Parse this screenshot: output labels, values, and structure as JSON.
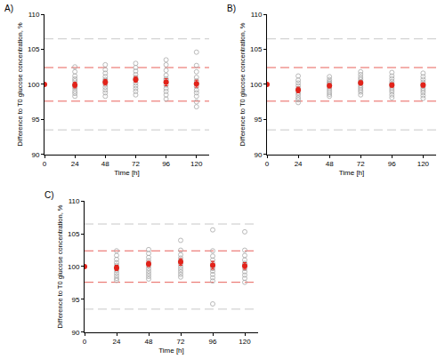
{
  "chart_data": [
    {
      "type": "scatter",
      "title": "A)",
      "x_label": "Time [h]",
      "y_label": "Difference to T0 glucose concentration, %",
      "xlim": [
        0,
        130
      ],
      "xticks": [
        0,
        24,
        48,
        72,
        96,
        120
      ],
      "ylim": [
        90,
        110
      ],
      "yticks": [
        90,
        95,
        100,
        105,
        110
      ],
      "grid": false,
      "hlines": [
        {
          "value": 106.5,
          "color": "#c8c8c8",
          "line_style": "dashed"
        },
        {
          "value": 93.5,
          "color": "#c8c8c8",
          "line_style": "dashed"
        },
        {
          "value": 102.4,
          "color": "#e8605a",
          "line_style": "dashed"
        },
        {
          "value": 97.6,
          "color": "#e8605a",
          "line_style": "dashed"
        }
      ],
      "series": [
        {
          "marker": "open_circle",
          "color": "#a8a8a8",
          "points": [
            {
              "x": 24,
              "values": [
                102.5,
                101.8,
                101.2,
                100.8,
                100.5,
                100.1,
                99.7,
                99.4,
                99.0,
                98.7,
                98.3,
                99.9
              ]
            },
            {
              "x": 48,
              "values": [
                102.8,
                102.1,
                101.6,
                101.1,
                100.7,
                100.3,
                100.0,
                99.6,
                99.2,
                98.8,
                98.3,
                100.5
              ]
            },
            {
              "x": 72,
              "values": [
                103.0,
                102.4,
                101.9,
                101.4,
                101.0,
                100.6,
                100.2,
                99.8,
                99.4,
                99.0,
                98.5,
                100.8
              ]
            },
            {
              "x": 96,
              "values": [
                103.5,
                102.8,
                102.0,
                101.3,
                100.8,
                100.3,
                99.9,
                99.4,
                99.0,
                98.5,
                97.9,
                100.6
              ]
            },
            {
              "x": 120,
              "values": [
                104.6,
                102.7,
                101.8,
                101.0,
                100.5,
                100.1,
                99.7,
                99.2,
                98.8,
                98.3,
                97.5,
                96.8
              ]
            }
          ]
        },
        {
          "marker": "circle",
          "color": "#e2231a",
          "x": [
            0,
            24,
            48,
            72,
            96,
            120
          ],
          "values": [
            100,
            99.9,
            100.3,
            100.7,
            100.3,
            100.1
          ],
          "error": [
            0,
            0.4,
            0.4,
            0.4,
            0.5,
            0.5
          ]
        }
      ]
    },
    {
      "type": "scatter",
      "title": "B)",
      "x_label": "Time [h]",
      "y_label": "Difference to T0 glucose concentration, %",
      "xlim": [
        0,
        130
      ],
      "xticks": [
        0,
        24,
        48,
        72,
        96,
        120
      ],
      "ylim": [
        90,
        110
      ],
      "yticks": [
        90,
        95,
        100,
        105,
        110
      ],
      "grid": false,
      "hlines": [
        {
          "value": 106.5,
          "color": "#c8c8c8",
          "line_style": "dashed"
        },
        {
          "value": 93.5,
          "color": "#c8c8c8",
          "line_style": "dashed"
        },
        {
          "value": 102.4,
          "color": "#e8605a",
          "line_style": "dashed"
        },
        {
          "value": 97.6,
          "color": "#e8605a",
          "line_style": "dashed"
        }
      ],
      "series": [
        {
          "marker": "open_circle",
          "color": "#a8a8a8",
          "points": [
            {
              "x": 24,
              "values": [
                101.2,
                100.6,
                100.2,
                99.8,
                99.4,
                99.1,
                98.8,
                98.5,
                98.1,
                97.8,
                97.4,
                99.3
              ]
            },
            {
              "x": 48,
              "values": [
                101.1,
                100.7,
                100.4,
                100.1,
                99.8,
                99.5,
                99.2,
                98.9,
                98.6,
                98.3,
                99.9,
                100.2
              ]
            },
            {
              "x": 72,
              "values": [
                101.8,
                101.4,
                101.0,
                100.7,
                100.4,
                100.1,
                99.8,
                99.5,
                99.2,
                98.9,
                98.5,
                100.3
              ]
            },
            {
              "x": 96,
              "values": [
                101.7,
                101.2,
                100.8,
                100.4,
                100.1,
                99.8,
                99.5,
                99.2,
                98.9,
                98.5,
                98.1,
                100.0
              ]
            },
            {
              "x": 120,
              "values": [
                101.6,
                101.1,
                100.7,
                100.3,
                100.0,
                99.7,
                99.4,
                99.1,
                98.8,
                98.4,
                98.0,
                99.9
              ]
            }
          ]
        },
        {
          "marker": "circle",
          "color": "#e2231a",
          "x": [
            0,
            24,
            48,
            72,
            96,
            120
          ],
          "values": [
            100,
            99.2,
            99.8,
            100.2,
            99.9,
            99.9
          ],
          "error": [
            0,
            0.4,
            0.3,
            0.3,
            0.3,
            0.3
          ]
        }
      ]
    },
    {
      "type": "scatter",
      "title": "C)",
      "x_label": "Time [h]",
      "y_label": "Difference to T0 glucose concentration, %",
      "xlim": [
        0,
        130
      ],
      "xticks": [
        0,
        24,
        48,
        72,
        96,
        120
      ],
      "ylim": [
        90,
        110
      ],
      "yticks": [
        90,
        95,
        100,
        105,
        110
      ],
      "grid": false,
      "hlines": [
        {
          "value": 106.5,
          "color": "#c8c8c8",
          "line_style": "dashed"
        },
        {
          "value": 93.5,
          "color": "#c8c8c8",
          "line_style": "dashed"
        },
        {
          "value": 102.4,
          "color": "#e8605a",
          "line_style": "dashed"
        },
        {
          "value": 97.6,
          "color": "#e8605a",
          "line_style": "dashed"
        }
      ],
      "series": [
        {
          "marker": "open_circle",
          "color": "#a8a8a8",
          "points": [
            {
              "x": 24,
              "values": [
                102.4,
                101.7,
                101.1,
                100.6,
                100.2,
                99.8,
                99.4,
                99.0,
                98.6,
                98.2,
                97.9,
                99.9
              ]
            },
            {
              "x": 48,
              "values": [
                102.6,
                102.0,
                101.4,
                100.9,
                100.5,
                100.1,
                99.7,
                99.3,
                98.9,
                98.5,
                98.1,
                100.4
              ]
            },
            {
              "x": 72,
              "values": [
                104.0,
                102.5,
                101.8,
                101.3,
                100.8,
                100.4,
                100.0,
                99.6,
                99.2,
                98.8,
                98.4,
                100.9
              ]
            },
            {
              "x": 96,
              "values": [
                105.6,
                102.4,
                101.6,
                101.0,
                100.5,
                100.1,
                99.7,
                99.3,
                98.8,
                98.3,
                97.8,
                94.3
              ]
            },
            {
              "x": 120,
              "values": [
                105.3,
                102.5,
                101.7,
                101.0,
                100.5,
                100.1,
                99.7,
                99.2,
                98.7,
                98.2,
                97.6,
                100.3
              ]
            }
          ]
        },
        {
          "marker": "circle",
          "color": "#e2231a",
          "x": [
            0,
            24,
            48,
            72,
            96,
            120
          ],
          "values": [
            100,
            99.8,
            100.4,
            100.7,
            100.2,
            100.1
          ],
          "error": [
            0,
            0.4,
            0.4,
            0.5,
            0.6,
            0.5
          ]
        }
      ]
    }
  ]
}
